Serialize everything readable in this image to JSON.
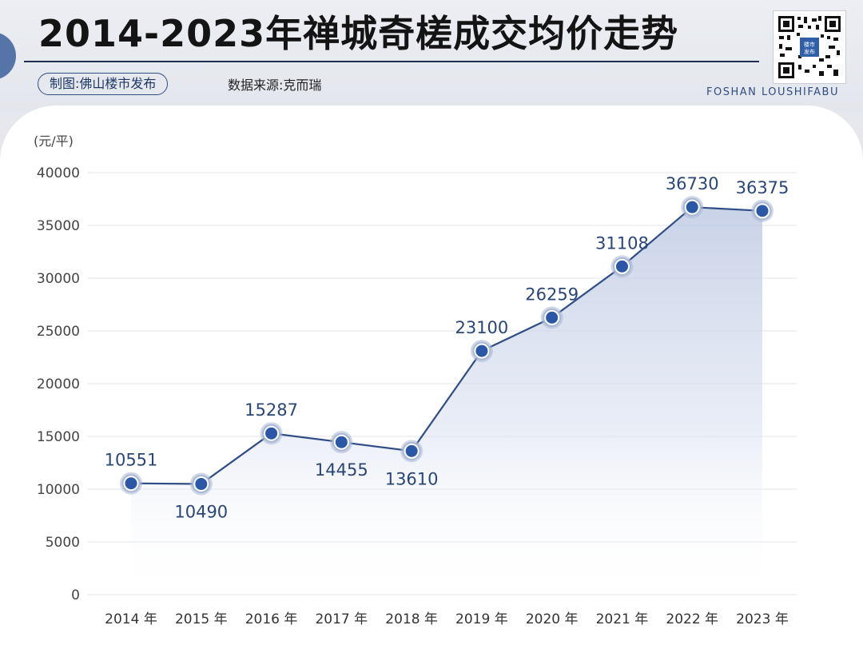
{
  "header": {
    "title": "2014-2023年禅城奇槎成交均价走势",
    "credit": "制图:佛山楼市发布",
    "source": "数据来源:克而瑞",
    "brand": "FOSHAN LOUSHIFABU",
    "qr_caption": "楼市发布"
  },
  "chart_data": {
    "type": "line",
    "title": "2014-2023年禅城奇槎成交均价走势",
    "categories": [
      "2014 年",
      "2015 年",
      "2016 年",
      "2017 年",
      "2018 年",
      "2019 年",
      "2020 年",
      "2021 年",
      "2022 年",
      "2023 年"
    ],
    "x": [
      2014,
      2015,
      2016,
      2017,
      2018,
      2019,
      2020,
      2021,
      2022,
      2023
    ],
    "series": [
      {
        "values": [
          10551,
          10490,
          15287,
          14455,
          13610,
          23100,
          26259,
          31108,
          36730,
          36375
        ]
      }
    ],
    "data_labels": [
      "10551",
      "10490",
      "15287",
      "14455",
      "13610",
      "23100",
      "26259",
      "31108",
      "36730",
      "36375"
    ],
    "y_ticks": [
      "0",
      "5000",
      "10000",
      "15000",
      "20000",
      "25000",
      "30000",
      "35000",
      "40000"
    ],
    "ylabel": "(元/平)",
    "xlabel": "",
    "ylim": [
      0,
      40000
    ],
    "grid": true,
    "legend": "none",
    "colors": {
      "line": "#2f4d86",
      "marker": "#2c57a6",
      "halo": "#a9b8d6",
      "label": "#2a4677",
      "grid": "#e3e5ea"
    }
  }
}
